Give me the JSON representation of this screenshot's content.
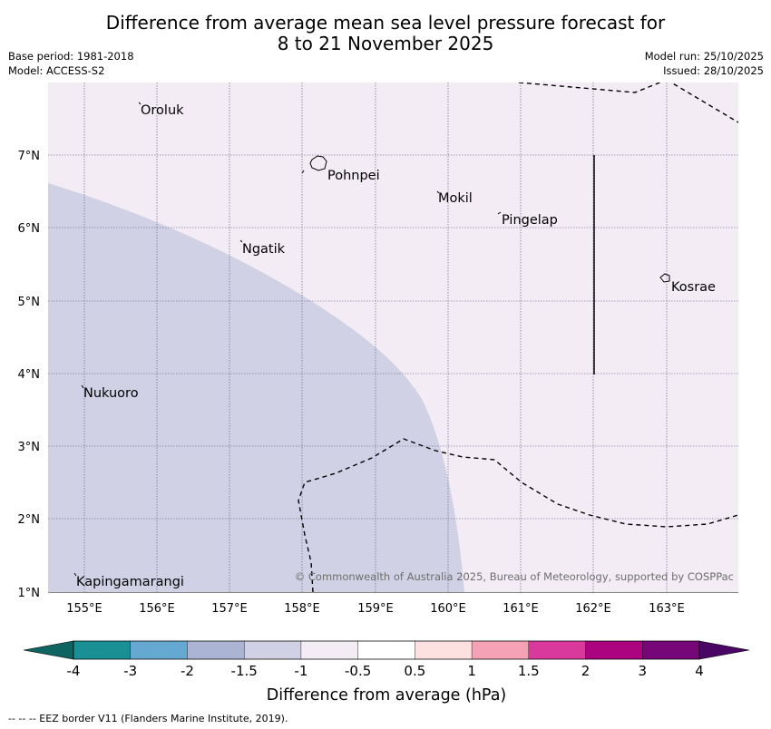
{
  "title": {
    "line1": "Difference from average mean sea level pressure forecast for",
    "line2": "8 to 21 November 2025"
  },
  "meta": {
    "base_period": "Base period: 1981-2018",
    "model": "Model: ACCESS-S2",
    "model_run": "Model run: 25/10/2025",
    "issued": "Issued: 28/10/2025"
  },
  "map": {
    "lon_labels": [
      "155°E",
      "156°E",
      "157°E",
      "158°E",
      "159°E",
      "160°E",
      "161°E",
      "162°E",
      "163°E"
    ],
    "lat_labels": [
      "7°N",
      "6°N",
      "5°N",
      "4°N",
      "3°N",
      "2°N",
      "1°N"
    ],
    "lon_range": [
      154.5,
      164.0
    ],
    "lat_range": [
      1.0,
      8.0
    ],
    "places": [
      {
        "name": "Oroluk",
        "lon": 155.75,
        "lat": 7.6
      },
      {
        "name": "Pohnpei",
        "lon": 158.2,
        "lat": 6.85
      },
      {
        "name": "Mokil",
        "lon": 159.8,
        "lat": 6.45
      },
      {
        "name": "Pingelap",
        "lon": 160.7,
        "lat": 6.2
      },
      {
        "name": "Ngatik",
        "lon": 157.15,
        "lat": 5.8
      },
      {
        "name": "Kosrae",
        "lon": 162.95,
        "lat": 5.3
      },
      {
        "name": "Nukuoro",
        "lon": 154.95,
        "lat": 3.85
      },
      {
        "name": "Kapingamarangi",
        "lon": 154.85,
        "lat": 1.25
      }
    ],
    "copyright": "© Commonwealth of Australia 2025, Bureau of Meteorology, supported by COSPPac",
    "colors": {
      "background_category": "#f3ecf5",
      "lower_category": "#d1d1e5",
      "grid": "#555577"
    },
    "region_categories": [
      "-1 to -0.5",
      "-1.5 to -1"
    ]
  },
  "colorbar": {
    "label": "Difference from average (hPa)",
    "ticks": [
      "-4",
      "-3",
      "-2",
      "-1.5",
      "-1",
      "-0.5",
      "0.5",
      "1",
      "1.5",
      "2",
      "3",
      "4"
    ],
    "colors": [
      "#1a9094",
      "#65a8d1",
      "#abb4d3",
      "#d1d1e5",
      "#f3ecf5",
      "#ffffff",
      "#fde0e0",
      "#f6a2b6",
      "#d9399a",
      "#ac0480",
      "#770779"
    ],
    "under_color": "#0e6460",
    "over_color": "#4a0664"
  },
  "footnote": "--  --  -- EEZ border V11 (Flanders Marine Institute, 2019)."
}
